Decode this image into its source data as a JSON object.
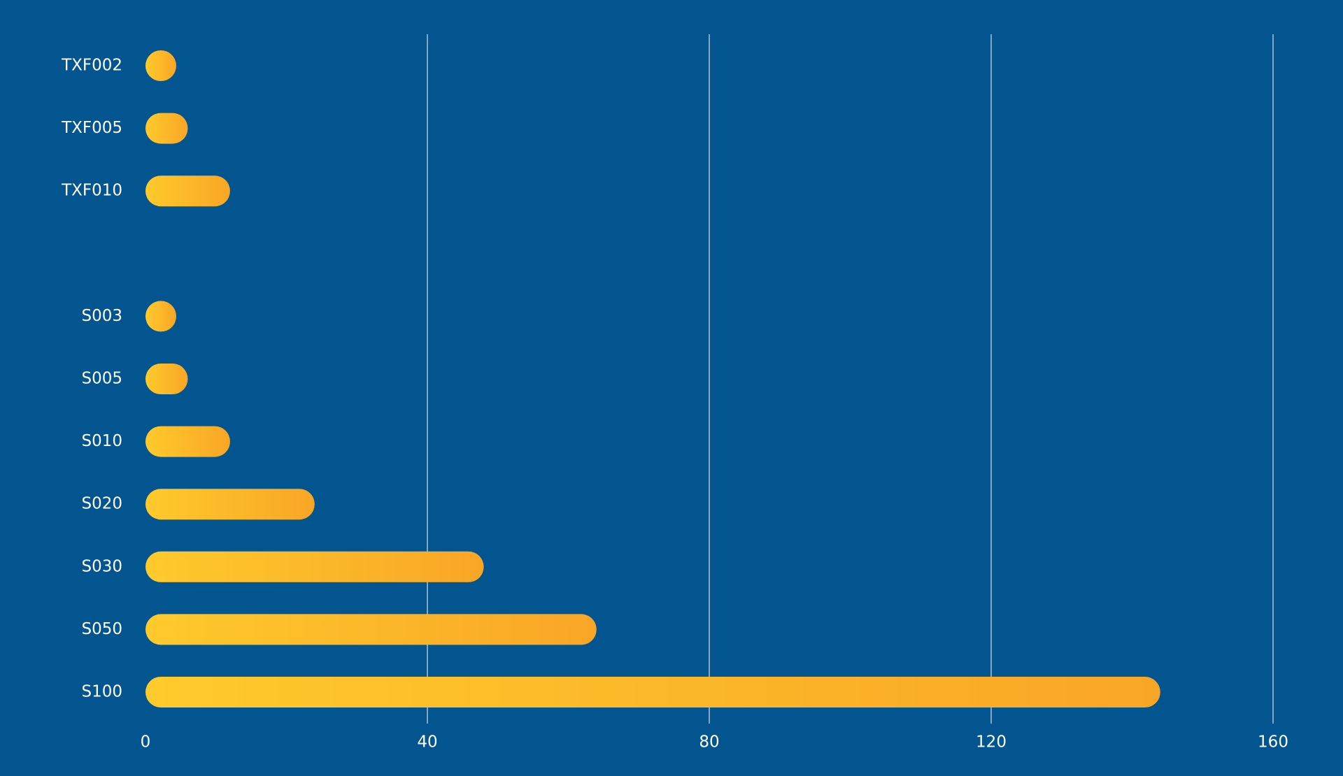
{
  "chart_data": {
    "type": "hbar",
    "categories": [
      "TXF002",
      "TXF005",
      "TXF010",
      null,
      "S003",
      "S005",
      "S010",
      "S020",
      "S030",
      "S050",
      "S100"
    ],
    "values": [
      4,
      6,
      12,
      null,
      4,
      6,
      12,
      24,
      48,
      64,
      144
    ],
    "gradient": [
      "#ffca2c",
      "#f9a626"
    ],
    "xlim": [
      0,
      160
    ],
    "xticks": [
      0,
      40,
      80,
      120,
      160
    ],
    "grid": true
  }
}
